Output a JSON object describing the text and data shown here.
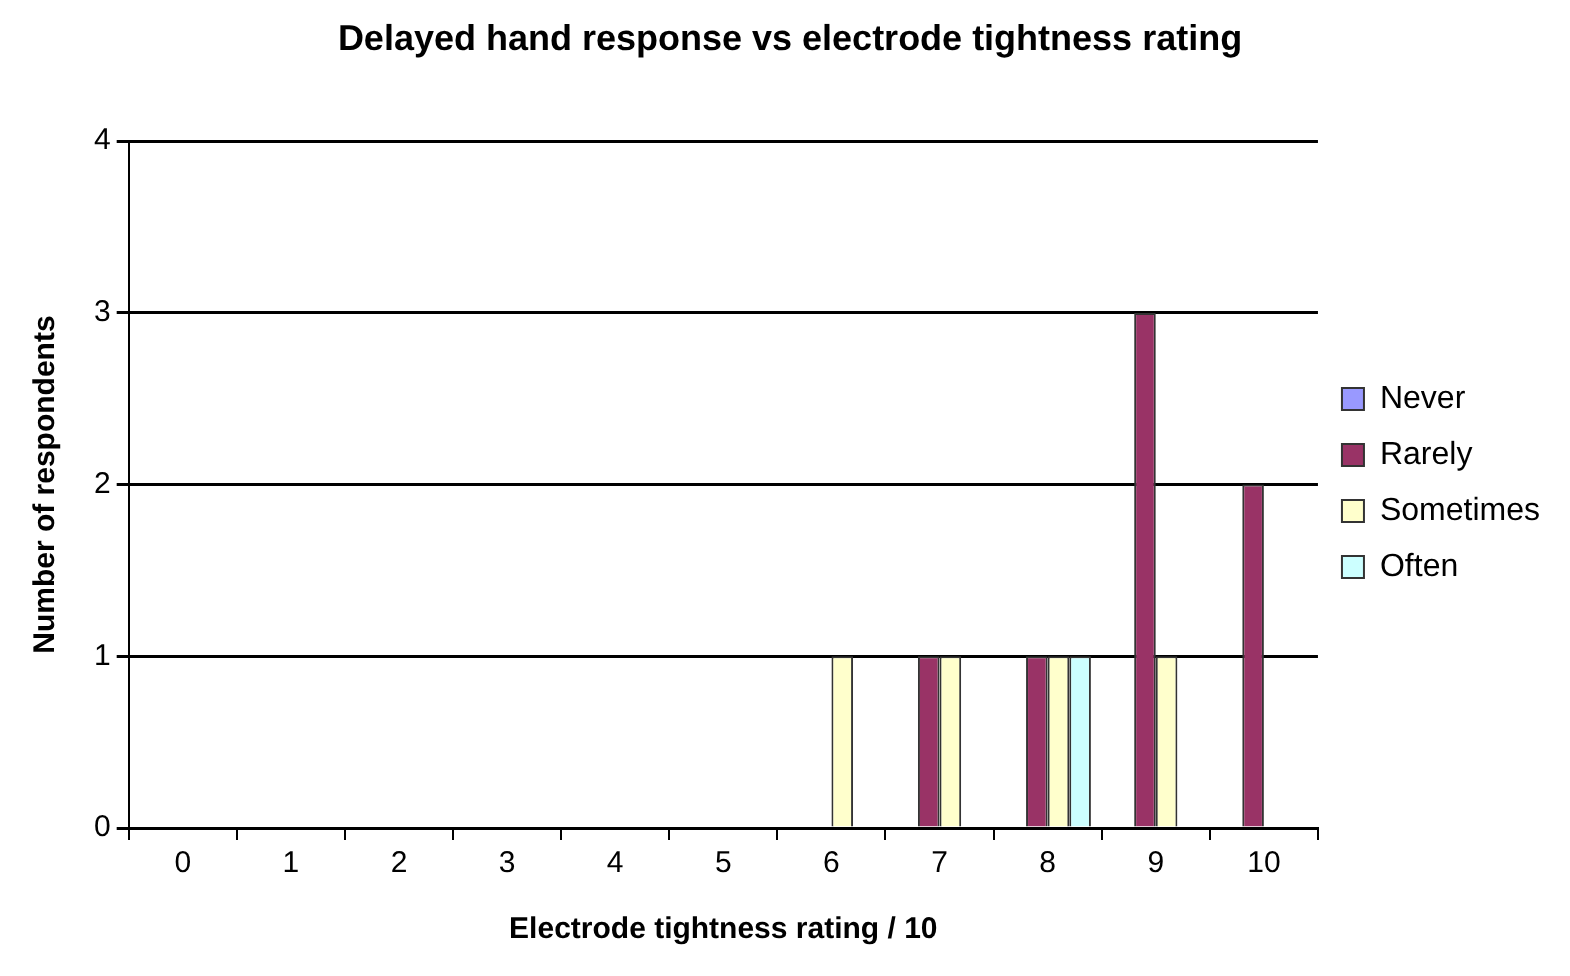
{
  "chart_data": {
    "type": "bar",
    "title": "Delayed hand response vs electrode tightness rating",
    "xlabel": "Electrode tightness rating / 10",
    "ylabel": "Number of respondents",
    "categories": [
      "0",
      "1",
      "2",
      "3",
      "4",
      "5",
      "6",
      "7",
      "8",
      "9",
      "10"
    ],
    "series": [
      {
        "name": "Never",
        "color": "#9999ff",
        "values": [
          0,
          0,
          0,
          0,
          0,
          0,
          0,
          0,
          0,
          0,
          0
        ]
      },
      {
        "name": "Rarely",
        "color": "#993366",
        "values": [
          0,
          0,
          0,
          0,
          0,
          0,
          0,
          1,
          1,
          3,
          2
        ]
      },
      {
        "name": "Sometimes",
        "color": "#ffffcc",
        "values": [
          0,
          0,
          0,
          0,
          0,
          0,
          1,
          1,
          1,
          1,
          0
        ]
      },
      {
        "name": "Often",
        "color": "#ccffff",
        "values": [
          0,
          0,
          0,
          0,
          0,
          0,
          0,
          0,
          1,
          0,
          0
        ]
      }
    ],
    "ylim": [
      0,
      4
    ],
    "yticks": [
      0,
      1,
      2,
      3,
      4
    ],
    "grid": "y",
    "legend": "right"
  }
}
